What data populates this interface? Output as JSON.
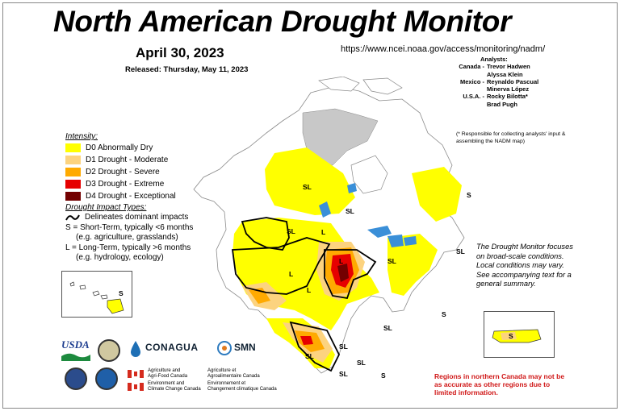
{
  "title": "North American Drought Monitor",
  "date": "April 30, 2023",
  "released": "Released: Thursday, May 11, 2023",
  "url": "https://www.ncei.noaa.gov/access/monitoring/nadm/",
  "analysts": {
    "header": "Analysts:",
    "rows": [
      {
        "country": "Canada -",
        "names": [
          "Trevor Hadwen",
          "Alyssa Klein"
        ]
      },
      {
        "country": "Mexico -",
        "names": [
          "Reynaldo Pascual",
          "Minerva López"
        ]
      },
      {
        "country": "U.S.A. -",
        "names": [
          "Rocky Bilotta*",
          "Brad Pugh"
        ]
      }
    ],
    "note": "(* Responsible for collecting analysts' input & assembling the NADM map)"
  },
  "legend": {
    "header": "Intensity:",
    "items": [
      {
        "label": "D0 Abnormally Dry",
        "color": "#ffff00"
      },
      {
        "label": "D1 Drought - Moderate",
        "color": "#fcd37f"
      },
      {
        "label": "D2 Drought - Severe",
        "color": "#ffaa00"
      },
      {
        "label": "D3 Drought - Extreme",
        "color": "#e60000"
      },
      {
        "label": "D4 Drought - Exceptional",
        "color": "#730000"
      }
    ],
    "impact_header": "Drought Impact Types:",
    "impact_line": "Delineates dominant impacts",
    "short_term": "S = Short-Term, typically <6 months",
    "short_term_eg": "(e.g. agriculture, grasslands)",
    "long_term": "L = Long-Term, typically >6 months",
    "long_term_eg": "(e.g. hydrology, ecology)"
  },
  "dm_note": "The Drought Monitor focuses on broad-scale conditions. Local conditions may vary. See accompanying text for a general summary.",
  "canada_note": "Regions in northern Canada may not be as accurate as other regions due to limited information.",
  "map_labels": {
    "sl_canada_west": "SL",
    "sl_canada_mid": "SL",
    "s_atlantic": "S",
    "sl_plains": "SL",
    "l_west": "L",
    "l_rockies": "L",
    "l_great_basin": "L",
    "l_plains": "L",
    "sl_midwest": "SL",
    "sl_east": "SL",
    "sl_southeast": "SL",
    "s_florida": "S",
    "sl_texas": "SL",
    "sl_mexico_north": "SL",
    "sl_mexico_east": "SL",
    "sl_mexico_west": "SL",
    "s_yucatan": "S",
    "s_hawaii": "S",
    "s_pr": "S"
  },
  "logos": {
    "usda": "USDA",
    "conagua": "CONAGUA",
    "smn": "SMN",
    "aafc_en": [
      "Agriculture and",
      "Agri-Food Canada"
    ],
    "aafc_fr": [
      "Agriculture et",
      "Agroalimentaire Canada"
    ],
    "eccc_en": [
      "Environment and",
      "Climate Change Canada"
    ],
    "eccc_fr": [
      "Environnement et",
      "Changement climatique Canada"
    ]
  }
}
